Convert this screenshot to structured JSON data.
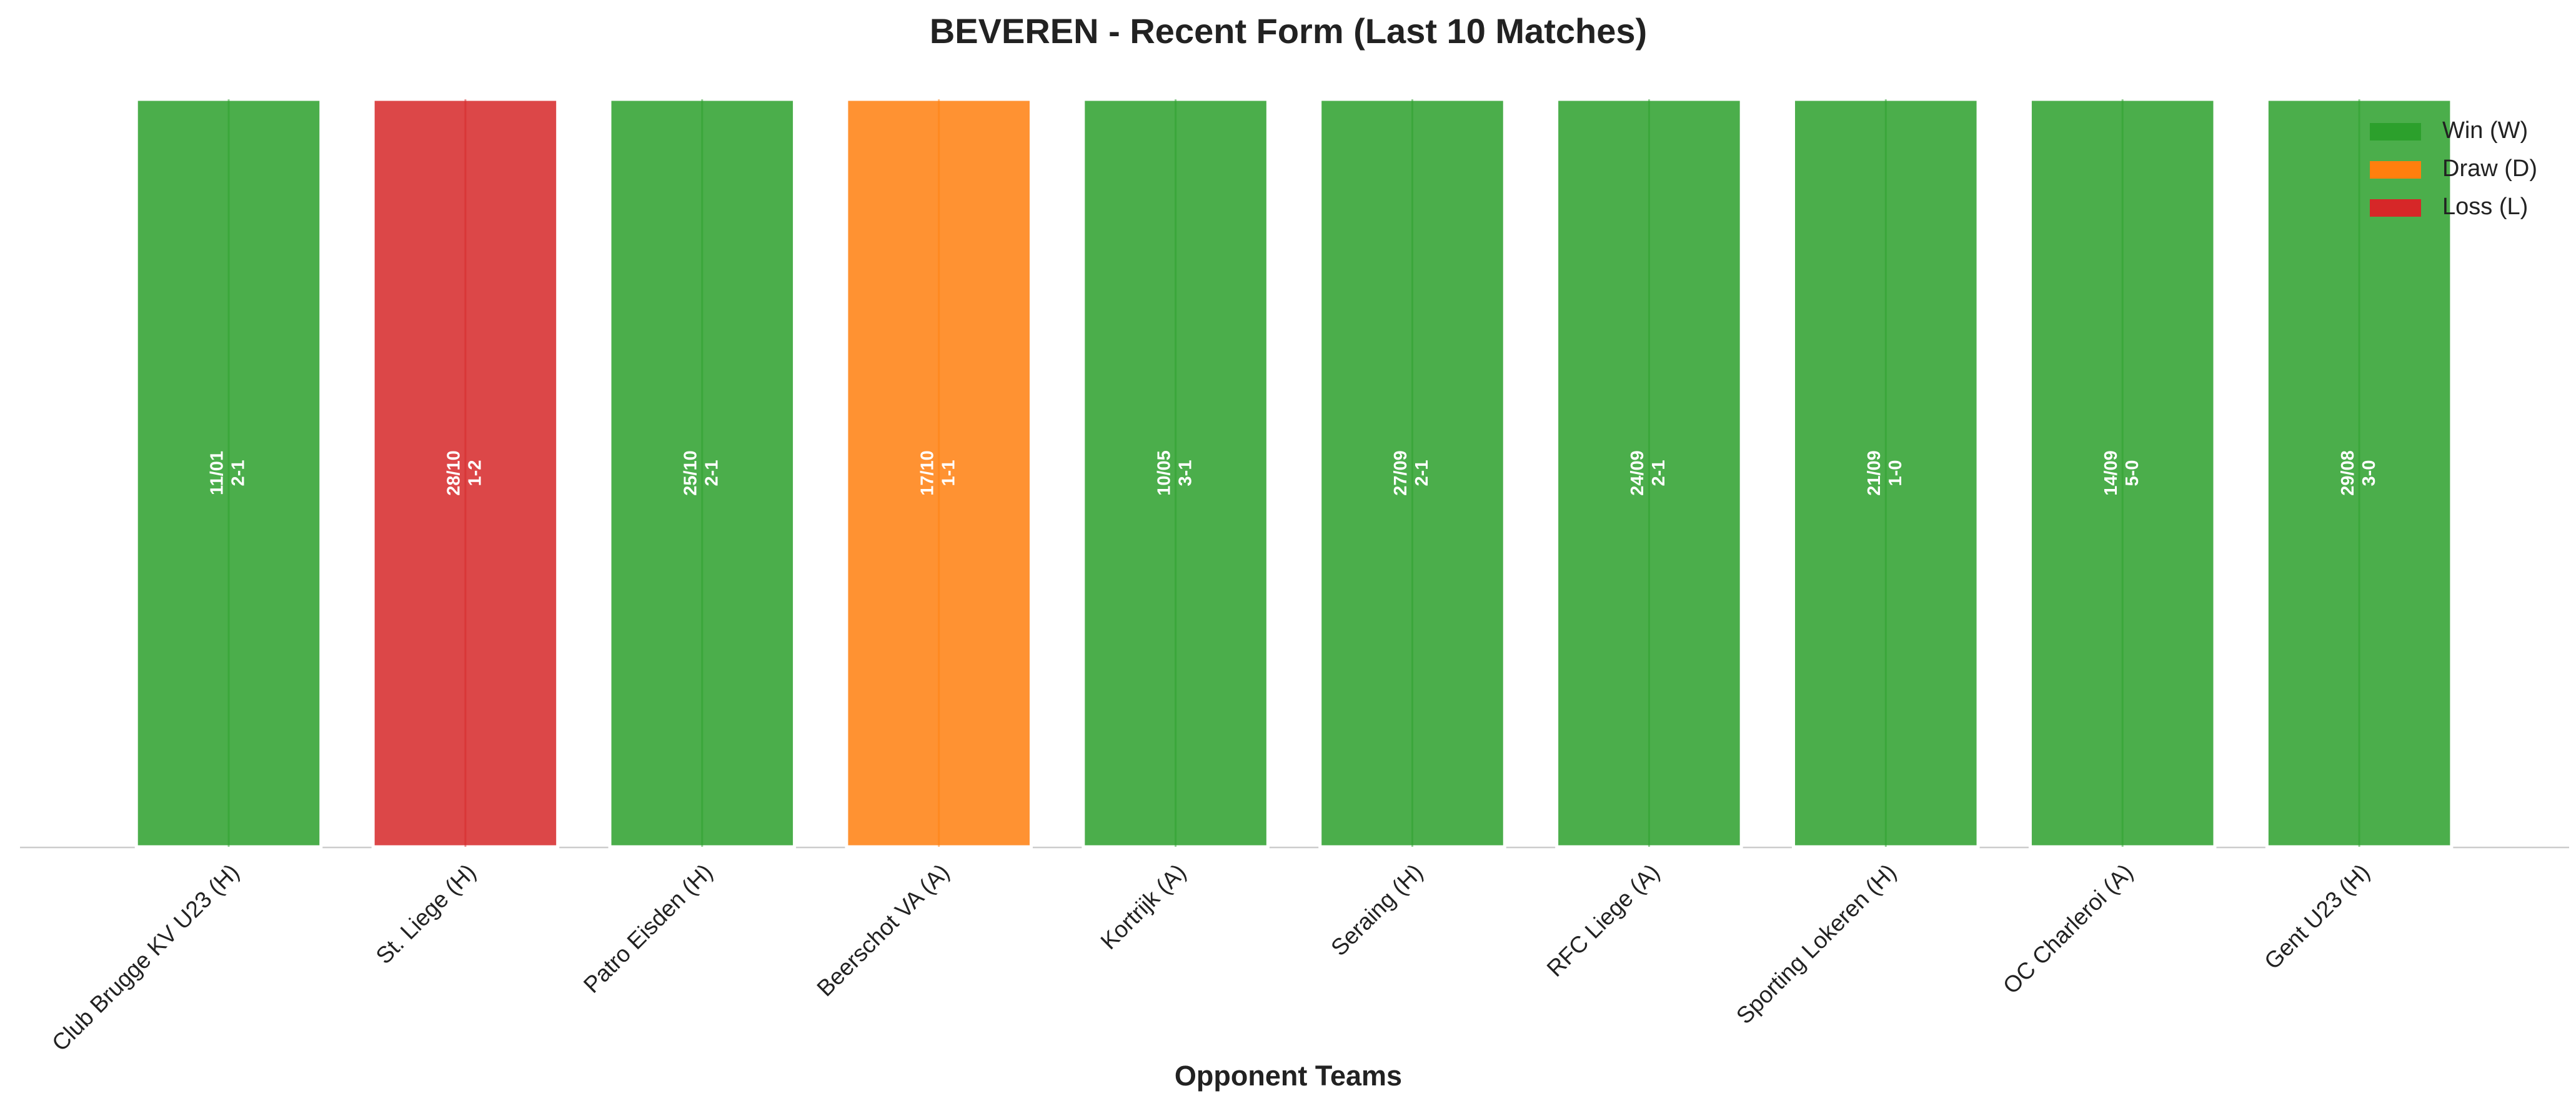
{
  "chart_data": {
    "type": "bar",
    "title": "BEVEREN - Recent Form (Last 10 Matches)",
    "x_label": "Opponent Teams",
    "categories": [
      "Club Brugge KV U23 (H)",
      "St. Liege (H)",
      "Patro Eisden (H)",
      "Beerschot VA (A)",
      "Kortrijk (A)",
      "Seraing (H)",
      "RFC Liege (A)",
      "Sporting Lokeren (H)",
      "OC Charleroi (A)",
      "Gent U23 (H)"
    ],
    "values": [
      1,
      1,
      1,
      1,
      1,
      1,
      1,
      1,
      1,
      1
    ],
    "dates": [
      "11/01",
      "28/10",
      "25/10",
      "17/10",
      "10/05",
      "27/09",
      "24/09",
      "21/09",
      "14/09",
      "29/08"
    ],
    "scores": [
      "2-1",
      "1-2",
      "2-1",
      "1-1",
      "3-1",
      "2-1",
      "2-1",
      "1-0",
      "5-0",
      "3-0"
    ],
    "colors": [
      "#2ca02c",
      "#d62728",
      "#2ca02c",
      "#ff7f0e",
      "#2ca02c",
      "#2ca02c",
      "#2ca02c",
      "#2ca02c",
      "#2ca02c",
      "#2ca02c"
    ],
    "ylim": [
      0,
      1
    ],
    "legend_position": "upper right",
    "legend": [
      {
        "name": "Win (W)",
        "color": "#2ca02c"
      },
      {
        "name": "Draw (D)",
        "color": "#ff7f0e"
      },
      {
        "name": "Loss (L)",
        "color": "#d62728"
      }
    ]
  }
}
